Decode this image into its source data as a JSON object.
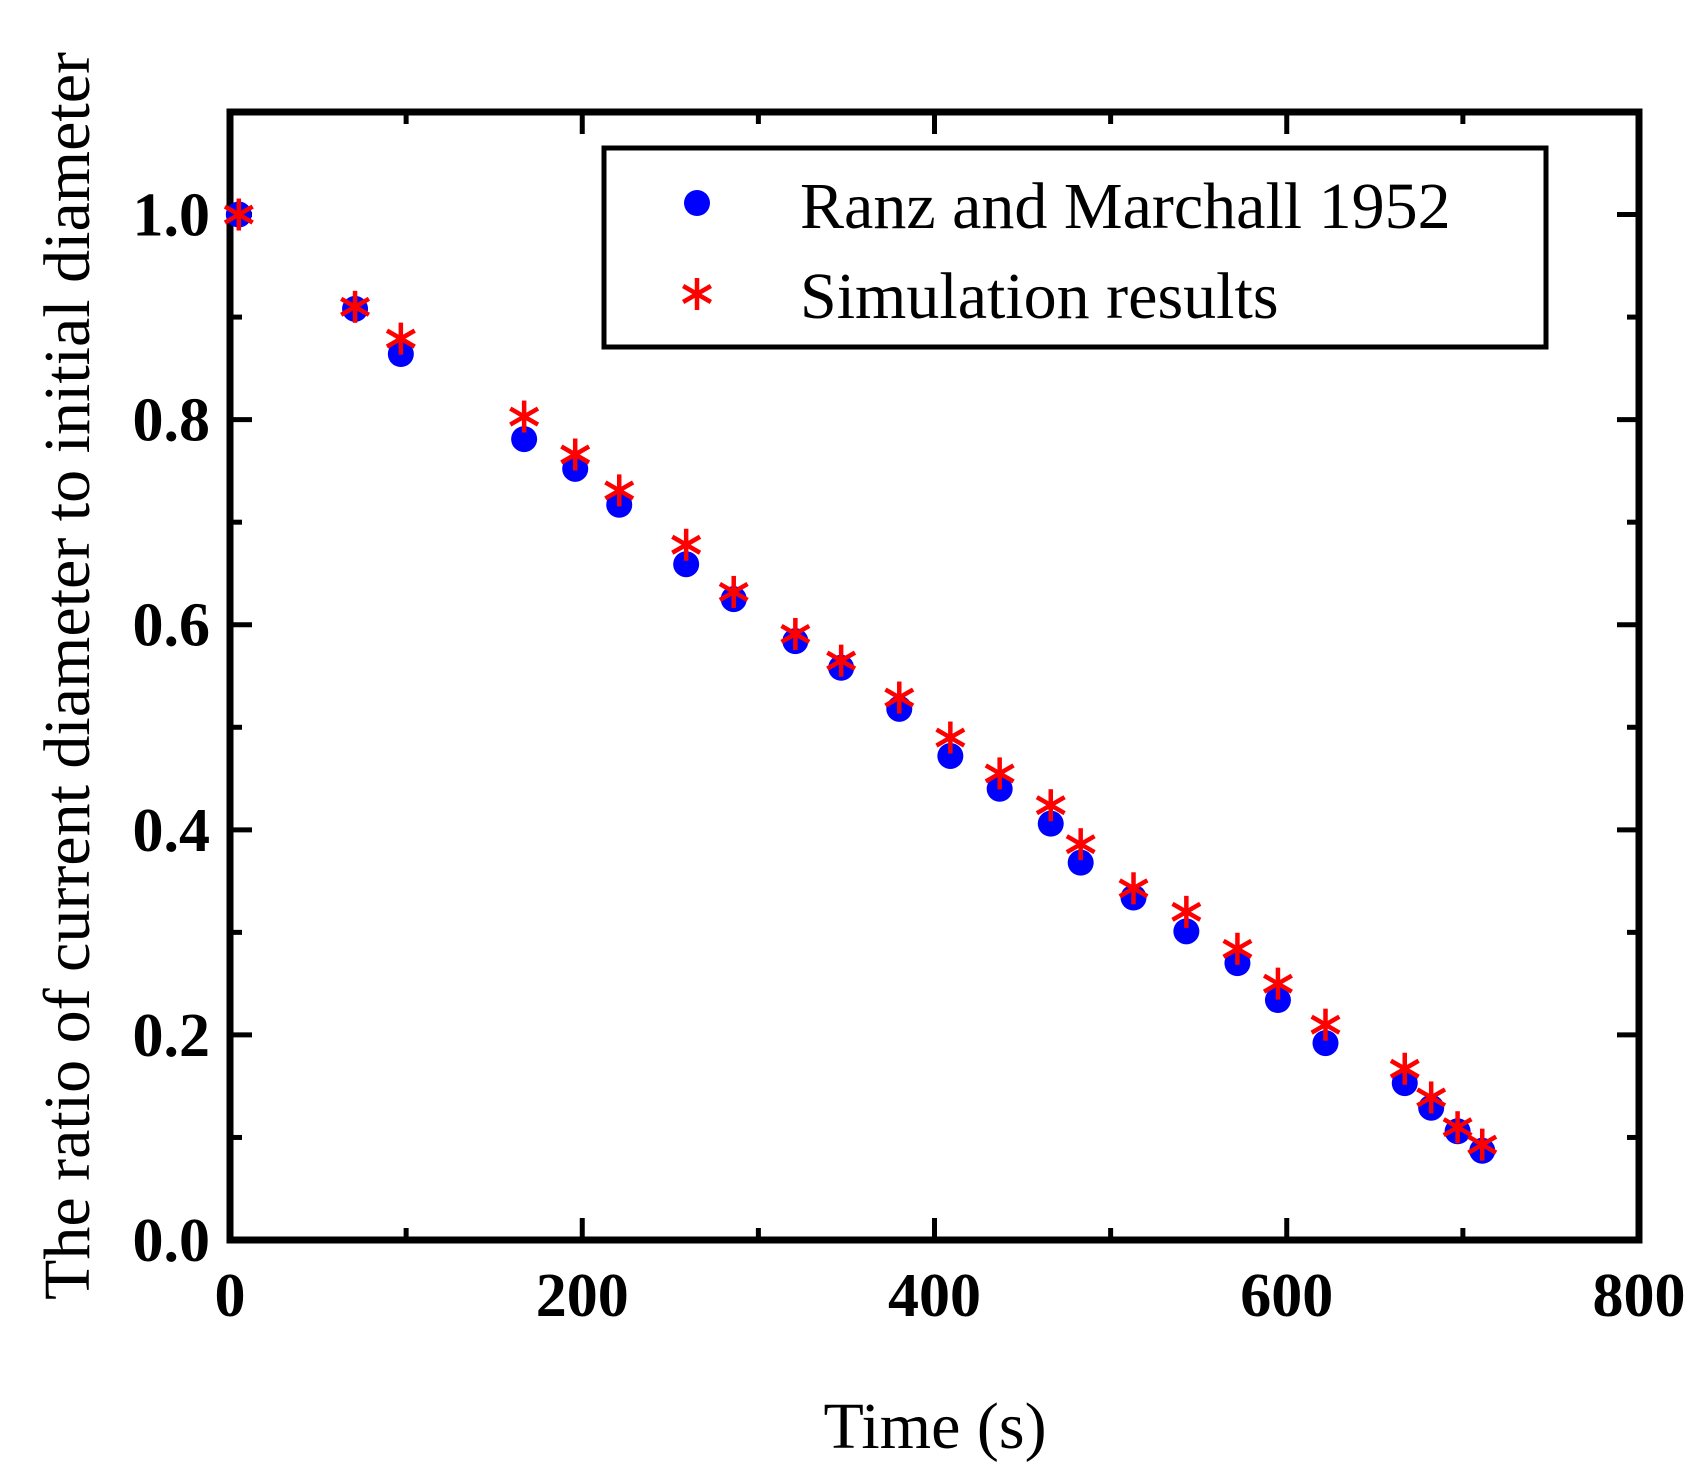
{
  "chart_data": {
    "type": "scatter",
    "title": "",
    "xlabel": "Time (s)",
    "ylabel": "The ratio of current diameter to initial diameter",
    "xlim": [
      0,
      800
    ],
    "ylim": [
      0,
      1.1
    ],
    "x_ticks": [
      0,
      200,
      400,
      600,
      800
    ],
    "x_tick_labels": [
      "0",
      "200",
      "400",
      "600",
      "800"
    ],
    "y_ticks": [
      0.0,
      0.2,
      0.4,
      0.6,
      0.8,
      1.0
    ],
    "y_tick_labels": [
      "0.0",
      "0.2",
      "0.4",
      "0.6",
      "0.8",
      "1.0"
    ],
    "grid": false,
    "legend_position": "top-right",
    "series": [
      {
        "name": "Ranz and Marchall 1952",
        "marker": "circle",
        "color": "#0000ff",
        "points": [
          [
            5,
            1.0
          ],
          [
            71,
            0.908
          ],
          [
            97,
            0.864
          ],
          [
            167,
            0.781
          ],
          [
            196,
            0.752
          ],
          [
            221,
            0.717
          ],
          [
            259,
            0.659
          ],
          [
            286,
            0.625
          ],
          [
            321,
            0.584
          ],
          [
            347,
            0.558
          ],
          [
            380,
            0.518
          ],
          [
            409,
            0.472
          ],
          [
            437,
            0.44
          ],
          [
            466,
            0.406
          ],
          [
            483,
            0.368
          ],
          [
            513,
            0.334
          ],
          [
            543,
            0.301
          ],
          [
            572,
            0.27
          ],
          [
            595,
            0.234
          ],
          [
            622,
            0.192
          ],
          [
            667,
            0.153
          ],
          [
            682,
            0.129
          ],
          [
            697,
            0.106
          ],
          [
            711,
            0.087
          ]
        ]
      },
      {
        "name": "Simulation results",
        "marker": "asterisk",
        "color": "#ff0000",
        "points": [
          [
            5,
            1.0
          ],
          [
            71,
            0.91
          ],
          [
            97,
            0.879
          ],
          [
            167,
            0.803
          ],
          [
            196,
            0.766
          ],
          [
            221,
            0.731
          ],
          [
            259,
            0.678
          ],
          [
            286,
            0.632
          ],
          [
            321,
            0.591
          ],
          [
            347,
            0.565
          ],
          [
            380,
            0.529
          ],
          [
            409,
            0.49
          ],
          [
            437,
            0.455
          ],
          [
            466,
            0.424
          ],
          [
            483,
            0.386
          ],
          [
            513,
            0.343
          ],
          [
            543,
            0.32
          ],
          [
            572,
            0.284
          ],
          [
            595,
            0.25
          ],
          [
            622,
            0.21
          ],
          [
            667,
            0.167
          ],
          [
            682,
            0.139
          ],
          [
            697,
            0.11
          ],
          [
            711,
            0.093
          ]
        ]
      }
    ]
  }
}
